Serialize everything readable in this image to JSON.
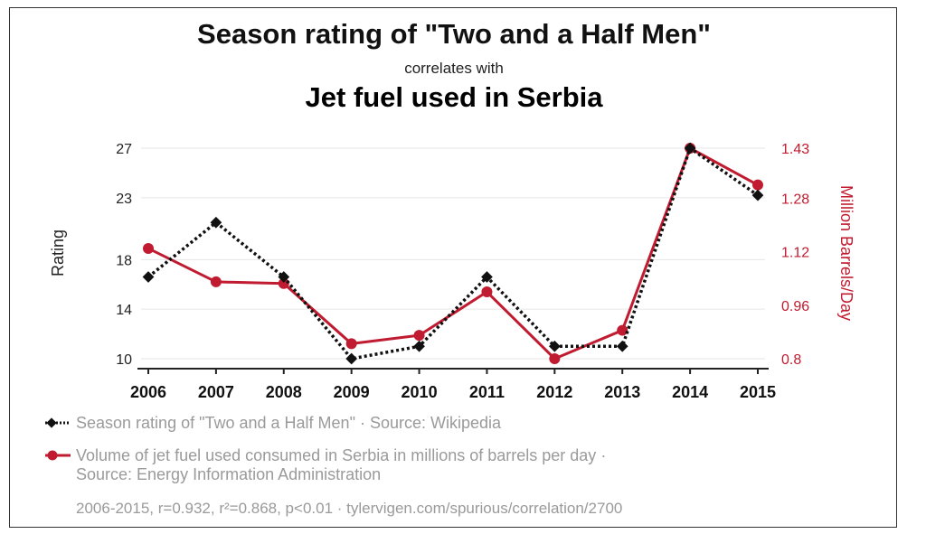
{
  "colors": {
    "series_rating": "#111111",
    "series_fuel": "#c01b30",
    "grid": "#e6e6e6",
    "muted_text": "#9a9a9a"
  },
  "chart_data": {
    "type": "line",
    "title": "Season rating of \"Two and a Half Men\"",
    "subtitle": "correlates with",
    "title2": "Jet fuel used in Serbia",
    "x": [
      "2006",
      "2007",
      "2008",
      "2009",
      "2010",
      "2011",
      "2012",
      "2013",
      "2014",
      "2015"
    ],
    "y_left": {
      "label": "Rating",
      "ticks": [
        10,
        14,
        18,
        23,
        27
      ],
      "range": [
        10,
        27
      ]
    },
    "y_right": {
      "label": "Million Barrels/Day",
      "ticks": [
        "0.8",
        "0.96",
        "1.12",
        "1.28",
        "1.43"
      ],
      "range": [
        0.8,
        1.43
      ]
    },
    "grid": true,
    "series": [
      {
        "name": "Season rating of \"Two and a Half Men\"",
        "axis": "left",
        "style": "dotted-black-diamond",
        "values": [
          16.6,
          21.0,
          16.6,
          10.0,
          11.0,
          16.6,
          11.0,
          11.0,
          27.0,
          23.2
        ]
      },
      {
        "name": "Volume of jet fuel used consumed in Serbia in millions of barrels per day",
        "axis": "right",
        "style": "solid-red-circle",
        "values": [
          1.13,
          1.03,
          1.025,
          0.845,
          0.87,
          1.0,
          0.8,
          0.885,
          1.43,
          1.32
        ]
      }
    ]
  },
  "legend": {
    "rating_source": "Source: Wikipedia",
    "fuel_source": "Source: Energy Information Administration",
    "separator": " · "
  },
  "footnote": "2006-2015, r=0.932, r²=0.868, p<0.01 · tylervigen.com/spurious/correlation/2700"
}
